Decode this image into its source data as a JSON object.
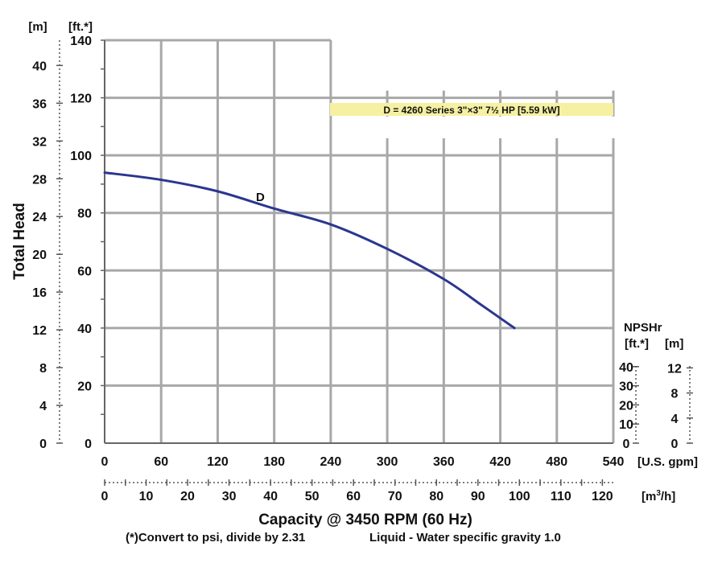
{
  "chart_data": {
    "type": "line",
    "curve_label": "D",
    "legend_text": "D = 4260 Series 3\"×3\" 7½ HP [5.59 kW]",
    "ylabel": "Total Head",
    "left_units_m": "[m]",
    "left_units_ft": "[ft.*]",
    "xlabel": "Capacity @ 3450 RPM (60 Hz)",
    "gpm_unit": "[U.S. gpm]",
    "m3h_unit_base": "[m",
    "m3h_unit_sup": "3",
    "m3h_unit_end": "/h]",
    "npsh_title": "NPSHr",
    "npsh_units_ft": "[ft.*]",
    "npsh_units_m": "[m]",
    "footnote_left": "(*)Convert to psi, divide by 2.31",
    "footnote_right": "Liquid - Water specific gravity 1.0",
    "x_gpm_range": [
      0,
      540
    ],
    "y_ft_range": [
      0,
      140
    ],
    "x_gpm_ticks": [
      "0",
      "60",
      "120",
      "180",
      "240",
      "300",
      "360",
      "420",
      "480",
      "540"
    ],
    "y_ft_ticks": [
      "0",
      "20",
      "40",
      "60",
      "80",
      "100",
      "120",
      "140"
    ],
    "y_m_ticks": [
      "0",
      "4",
      "8",
      "12",
      "16",
      "20",
      "24",
      "28",
      "32",
      "36",
      "40"
    ],
    "x_m3h_ticks": [
      "0",
      "10",
      "20",
      "30",
      "40",
      "50",
      "60",
      "70",
      "80",
      "90",
      "100",
      "110",
      "120"
    ],
    "npsh_ft_ticks": [
      "0",
      "10",
      "20",
      "30",
      "40"
    ],
    "npsh_m_ticks": [
      "0",
      "4",
      "8",
      "12"
    ],
    "grid": true,
    "series": [
      {
        "name": "D",
        "color": "#2b3690",
        "x": [
          0,
          60,
          120,
          180,
          240,
          300,
          360,
          400,
          435
        ],
        "y": [
          94,
          91.5,
          87.5,
          81.5,
          76,
          67.5,
          57,
          48,
          40
        ]
      }
    ]
  }
}
